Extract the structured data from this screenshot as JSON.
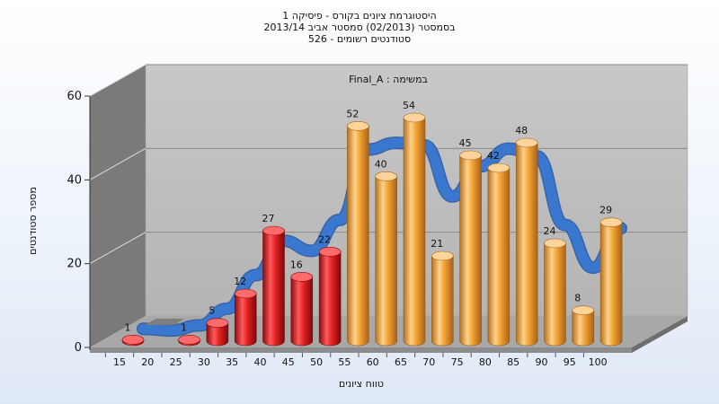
{
  "header": {
    "line1": "היסטוגרמת ציונים בקורס - פיסיקה 1",
    "line2": "בסמסטר  (02/2013)  סמסטר אביב 2013/14",
    "line3": "סטודנטים רשומים - 526"
  },
  "chart_data": {
    "type": "bar",
    "title": "Final_A : במשימה",
    "xlabel": "טווח ציונים",
    "ylabel": "מספר סטודנטים",
    "ylim": [
      0,
      60
    ],
    "yticks": [
      0,
      20,
      40,
      60
    ],
    "categories": [
      "15",
      "20",
      "25",
      "30",
      "35",
      "40",
      "45",
      "50",
      "55",
      "60",
      "65",
      "70",
      "75",
      "80",
      "85",
      "90",
      "95",
      "100"
    ],
    "values": [
      1,
      0,
      1,
      5,
      12,
      27,
      16,
      22,
      52,
      40,
      54,
      21,
      45,
      42,
      48,
      24,
      8,
      29
    ],
    "data_labels": [
      "1",
      "",
      "1",
      "5",
      "12",
      "27",
      "16",
      "22",
      "52",
      "40",
      "54",
      "21",
      "45",
      "42",
      "48",
      "24",
      "8",
      "29"
    ],
    "grid": true,
    "colors": {
      "fail": "#e02020",
      "pass": "#f0a030",
      "curve": "#3a78d0",
      "back_wall": "#c0c0c0",
      "side_wall": "#7a7a7a"
    },
    "pass_threshold": 55
  }
}
